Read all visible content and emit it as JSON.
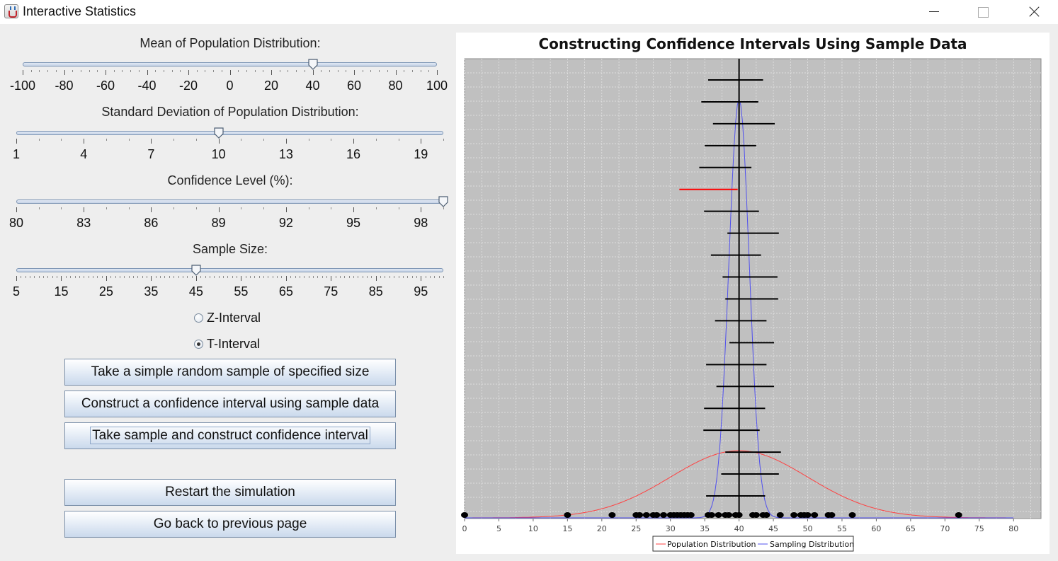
{
  "window": {
    "title": "Interactive Statistics"
  },
  "sliders": [
    {
      "id": "mean",
      "caption": "Mean of Population Distribution:",
      "labels": [
        "-100",
        "-80",
        "-60",
        "-40",
        "-20",
        "0",
        "20",
        "40",
        "60",
        "80",
        "100"
      ],
      "min": -100,
      "max": 100,
      "minor_step": 4,
      "value": 40
    },
    {
      "id": "sd",
      "caption": "Standard Deviation of Population Distribution:",
      "labels": [
        "1",
        "4",
        "7",
        "10",
        "13",
        "16",
        "19"
      ],
      "min": 1,
      "max": 20,
      "minor_step": 1,
      "value": 10
    },
    {
      "id": "confidence",
      "caption": "Confidence Level (%):",
      "labels": [
        "80",
        "83",
        "86",
        "89",
        "92",
        "95",
        "98"
      ],
      "min": 80,
      "max": 99,
      "minor_step": 1,
      "value": 99
    },
    {
      "id": "sample_size",
      "caption": "Sample Size:",
      "labels": [
        "5",
        "15",
        "25",
        "35",
        "45",
        "55",
        "65",
        "75",
        "85",
        "95"
      ],
      "min": 5,
      "max": 100,
      "minor_step": 1,
      "value": 45
    }
  ],
  "radios": [
    {
      "label": "Z-Interval",
      "checked": false
    },
    {
      "label": "T-Interval",
      "checked": true
    }
  ],
  "buttons": {
    "sample": "Take a simple random sample of specified size",
    "construct": "Construct a confidence interval using sample data",
    "both": "Take sample and construct confidence interval",
    "restart": "Restart the simulation",
    "back": "Go back to previous page"
  },
  "chart_data": {
    "type": "scatter",
    "title": "Constructing Confidence Intervals Using Sample Data",
    "x_ticks": [
      0,
      5,
      10,
      15,
      20,
      25,
      30,
      35,
      40,
      45,
      50,
      55,
      60,
      65,
      70,
      75,
      80
    ],
    "xlim": [
      0,
      84
    ],
    "population_mean": 40,
    "population_sd": 10,
    "sample_size": 45,
    "grid": true,
    "plot_background": "#c0c0c0",
    "legend": {
      "placement": "bottom",
      "entries": [
        {
          "name": "Population Distribution",
          "color": "#ff4040"
        },
        {
          "name": "Sampling Distribution",
          "color": "#5050ee"
        }
      ]
    },
    "intervals": [
      {
        "lower": 35.5,
        "upper": 43.5,
        "contains_mean": true
      },
      {
        "lower": 34.5,
        "upper": 42.8,
        "contains_mean": true
      },
      {
        "lower": 36.2,
        "upper": 45.2,
        "contains_mean": true
      },
      {
        "lower": 35.0,
        "upper": 42.5,
        "contains_mean": true
      },
      {
        "lower": 34.2,
        "upper": 41.8,
        "contains_mean": true
      },
      {
        "lower": 31.3,
        "upper": 39.8,
        "contains_mean": false
      },
      {
        "lower": 34.9,
        "upper": 42.9,
        "contains_mean": true
      },
      {
        "lower": 38.3,
        "upper": 45.8,
        "contains_mean": true
      },
      {
        "lower": 35.9,
        "upper": 43.2,
        "contains_mean": true
      },
      {
        "lower": 37.6,
        "upper": 45.6,
        "contains_mean": true
      },
      {
        "lower": 38.0,
        "upper": 45.7,
        "contains_mean": true
      },
      {
        "lower": 36.5,
        "upper": 44.0,
        "contains_mean": true
      },
      {
        "lower": 38.6,
        "upper": 45.1,
        "contains_mean": true
      },
      {
        "lower": 35.2,
        "upper": 44.0,
        "contains_mean": true
      },
      {
        "lower": 36.7,
        "upper": 45.1,
        "contains_mean": true
      },
      {
        "lower": 34.9,
        "upper": 43.8,
        "contains_mean": true
      },
      {
        "lower": 34.8,
        "upper": 43.0,
        "contains_mean": true
      },
      {
        "lower": 38.0,
        "upper": 46.1,
        "contains_mean": true
      },
      {
        "lower": 37.4,
        "upper": 45.8,
        "contains_mean": true
      },
      {
        "lower": 35.2,
        "upper": 43.8,
        "contains_mean": true
      }
    ],
    "sample_points": [
      0,
      15,
      21.5,
      25,
      25.5,
      26.5,
      27.5,
      28,
      29,
      30,
      30.5,
      31,
      31.5,
      32,
      32.5,
      33,
      35.5,
      36,
      37,
      38,
      38.5,
      39.5,
      40,
      42,
      42.5,
      43.5,
      44,
      46,
      48,
      49,
      49.5,
      50,
      51,
      53,
      53.5,
      56.5,
      72
    ]
  }
}
